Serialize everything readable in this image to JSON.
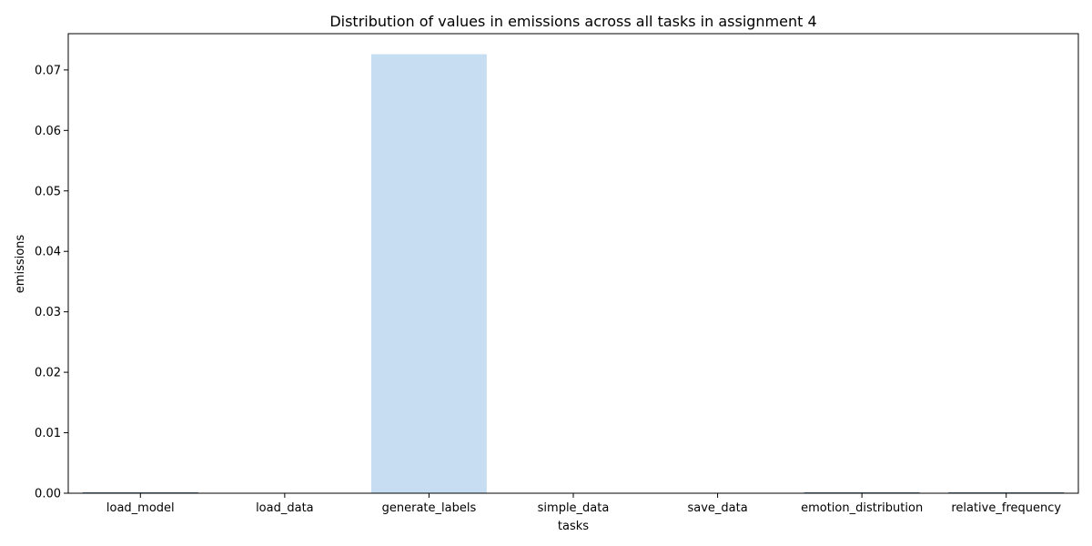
{
  "chart_data": {
    "type": "bar",
    "title": "Distribution of values in emissions across all tasks in assignment 4",
    "xlabel": "tasks",
    "ylabel": "emissions",
    "categories": [
      "load_model",
      "load_data",
      "generate_labels",
      "simple_data",
      "save_data",
      "emotion_distribution",
      "relative_frequency"
    ],
    "values": [
      2e-05,
      0.0,
      0.0726,
      0.0,
      0.0,
      2e-05,
      2e-05
    ],
    "ylim": [
      0,
      0.076
    ],
    "yticks": [
      0.0,
      0.01,
      0.02,
      0.03,
      0.04,
      0.05,
      0.06,
      0.07
    ],
    "ytick_labels": [
      "0.00",
      "0.01",
      "0.02",
      "0.03",
      "0.04",
      "0.05",
      "0.06",
      "0.07"
    ],
    "grid": false,
    "legend": "none",
    "colors": {
      "main_bar": "#c6ddf2",
      "small_bar": "#5a7fa0",
      "axis": "#000000"
    }
  }
}
